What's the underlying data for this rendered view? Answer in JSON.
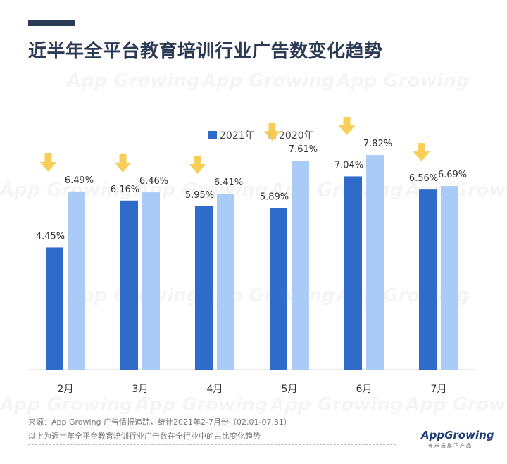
{
  "header": {
    "title": "近半年全平台教育培训行业广告数变化趋势"
  },
  "watermark_text": "App Growing",
  "chart_data": {
    "type": "bar",
    "title": "近半年全平台教育培训行业广告数变化趋势",
    "categories": [
      "2月",
      "3月",
      "4月",
      "5月",
      "6月",
      "7月"
    ],
    "series": [
      {
        "name": "2021年",
        "color": "#2f6bc9",
        "values": [
          4.45,
          6.16,
          5.95,
          5.89,
          7.04,
          6.56
        ],
        "labels": [
          "4.45%",
          "6.16%",
          "5.95%",
          "5.89%",
          "7.04%",
          "6.56%"
        ]
      },
      {
        "name": "2020年",
        "color": "#a9cbf6",
        "values": [
          6.49,
          6.46,
          6.41,
          7.61,
          7.82,
          6.69
        ],
        "labels": [
          "6.49%",
          "6.46%",
          "6.41%",
          "7.61%",
          "7.82%",
          "6.69%"
        ]
      }
    ],
    "ylim": [
      0,
      10
    ],
    "xlabel": "",
    "ylabel": "",
    "grid": false,
    "legend": "top-center",
    "arrow_color": "#f7c948"
  },
  "footer": {
    "source": "来源：App Growing 广告情报追踪，统计2021年2-7月份（02.01-07.31）",
    "note": "以上为近半年全平台教育培训行业广告数在全行业中的占比变化趋势"
  },
  "logo": {
    "main": "AppGrowing",
    "sub": "有米云旗下产品"
  }
}
